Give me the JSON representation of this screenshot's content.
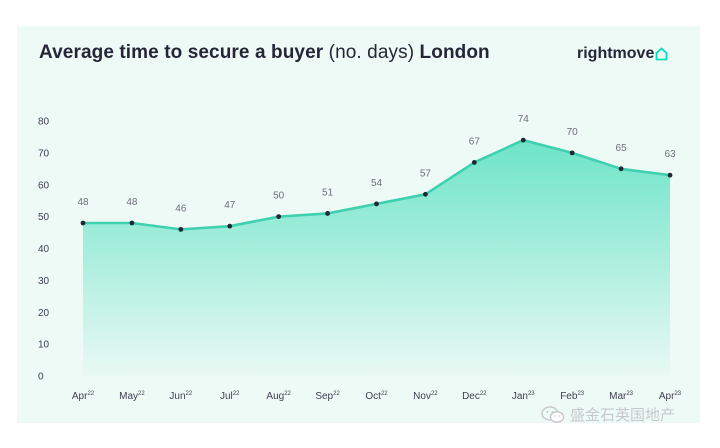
{
  "header": {
    "title_bold": "Average time to secure a buyer",
    "title_unit": "(no. days)",
    "title_place": "London",
    "logo_text": "rightmove"
  },
  "watermark": {
    "text": "盛金石英国地产",
    "icon": "wechat-icon"
  },
  "colors": {
    "line": "#3fd0b0",
    "area_top": "#6de4c8",
    "area_bottom": "#e9f9f4",
    "point": "#1d2a35",
    "logo_accent": "#00deb6"
  },
  "chart_data": {
    "type": "area",
    "categories": [
      "Apr",
      "May",
      "Jun",
      "Jul",
      "Aug",
      "Sep",
      "Oct",
      "Nov",
      "Dec",
      "Jan",
      "Feb",
      "Mar",
      "Apr"
    ],
    "category_superscripts": [
      "22",
      "22",
      "22",
      "22",
      "22",
      "22",
      "22",
      "22",
      "22",
      "23",
      "23",
      "23",
      "23"
    ],
    "values": [
      48,
      48,
      46,
      47,
      50,
      51,
      54,
      57,
      67,
      74,
      70,
      65,
      63
    ],
    "data_labels": [
      "48",
      "48",
      "46",
      "47",
      "50",
      "51",
      "54",
      "57",
      "67",
      "74",
      "70",
      "65",
      "63"
    ],
    "ylim": [
      0,
      80
    ],
    "yticks": [
      0,
      10,
      20,
      30,
      40,
      50,
      60,
      70,
      80
    ],
    "xlabel": "",
    "ylabel": "",
    "grid": false,
    "legend": "none"
  }
}
